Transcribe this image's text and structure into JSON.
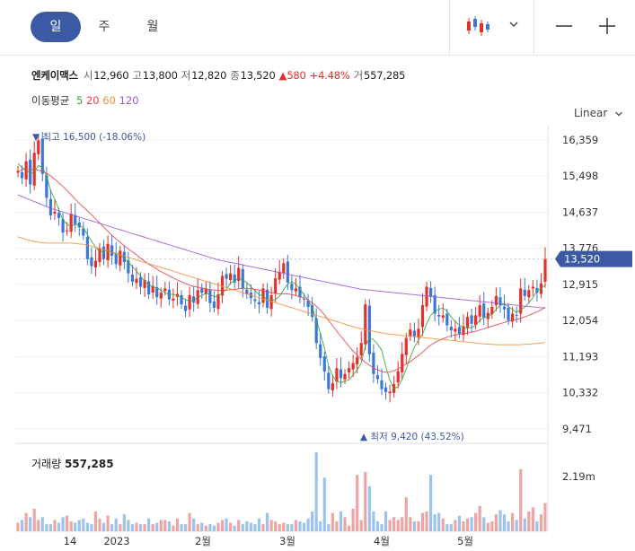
{
  "toolbar": {
    "period_tabs": [
      {
        "label": "일",
        "active": true
      },
      {
        "label": "주",
        "active": false
      },
      {
        "label": "월",
        "active": false
      }
    ],
    "chart_type_icon": "candlestick-icon",
    "zoom_out_icon": "minus-icon",
    "zoom_in_icon": "plus-icon"
  },
  "quote": {
    "name": "엔케이맥스",
    "open_label": "시",
    "open": "12,960",
    "high_label": "고",
    "high": "13,800",
    "low_label": "저",
    "low": "12,820",
    "close_label": "종",
    "close": "13,520",
    "change_arrow": "▲",
    "change": "580",
    "change_pct": "+4.48%",
    "volume_label": "거",
    "volume": "557,285"
  },
  "moving_average": {
    "label": "이동평균",
    "periods": [
      {
        "value": "5",
        "color": "#37a537"
      },
      {
        "value": "20",
        "color": "#e8414a"
      },
      {
        "value": "60",
        "color": "#f0903c"
      },
      {
        "value": "120",
        "color": "#9b57d6"
      }
    ]
  },
  "scale_toggle": {
    "label": "Linear"
  },
  "colors": {
    "up": "#e5302b",
    "down": "#3a78d8",
    "accent": "#3b5aa3",
    "vol_up": "#f0a3a3",
    "vol_down": "#9cc3ec"
  },
  "chart_data": {
    "type": "candlestick",
    "y_ticks": [
      "16,359",
      "15,498",
      "14,637",
      "13,776",
      "12,915",
      "12,054",
      "11,193",
      "10,332",
      "9,471"
    ],
    "ylim": [
      9300,
      16700
    ],
    "current_price_tag": "13,520",
    "max_annotation": "최고 16,500 (-18.06%)",
    "min_annotation": "최저 9,420 (43.52%)",
    "x_ticks": [
      "14",
      "2023",
      "2월",
      "3월",
      "4월",
      "5월"
    ],
    "x_tick_positions": [
      78,
      130,
      226,
      320,
      425,
      518
    ],
    "volume_axis_tick": "2.19m",
    "volume_label": "거래량",
    "volume_value": "557,285",
    "closes": [
      15620,
      15450,
      15850,
      15300,
      16050,
      16350,
      15550,
      14980,
      14560,
      14650,
      14500,
      14150,
      14200,
      14600,
      14350,
      14280,
      14080,
      13520,
      13350,
      13480,
      13780,
      13520,
      13880,
      13600,
      13400,
      13720,
      13450,
      13180,
      12980,
      13050,
      12860,
      13020,
      12680,
      12880,
      12610,
      12720,
      12820,
      12560,
      12580,
      12690,
      12440,
      12280,
      12660,
      12480,
      12780,
      12720,
      12820,
      12470,
      12360,
      12680,
      13120,
      13050,
      13180,
      12960,
      13310,
      12820,
      12680,
      12590,
      12520,
      12440,
      12820,
      12360,
      12660,
      13060,
      13220,
      13420,
      12960,
      12780,
      12820,
      12610,
      12560,
      12380,
      12140,
      11520,
      11160,
      10840,
      10420,
      10560,
      10920,
      10680,
      10780,
      10920,
      11040,
      11180,
      11520,
      12440,
      11250,
      10780,
      10660,
      10420,
      10350,
      10360,
      10540,
      10850,
      11260,
      11640,
      11840,
      11680,
      11860,
      12420,
      12860,
      12620,
      12220,
      12150,
      12180,
      11940,
      11820,
      11860,
      11740,
      11920,
      12140,
      11980,
      12180,
      12420,
      12120,
      12240,
      12380,
      12640,
      12420,
      12320,
      12060,
      12220,
      12180,
      12820,
      12640,
      12780,
      12860,
      12720,
      12940,
      13520
    ],
    "volumes": [
      6,
      8,
      13,
      10,
      16,
      8,
      10,
      5,
      5,
      8,
      6,
      10,
      11,
      7,
      6,
      8,
      9,
      6,
      5,
      14,
      9,
      6,
      11,
      5,
      9,
      5,
      12,
      8,
      5,
      6,
      5,
      5,
      9,
      5,
      6,
      8,
      8,
      7,
      4,
      9,
      5,
      5,
      13,
      9,
      5,
      6,
      4,
      5,
      4,
      6,
      8,
      9,
      6,
      4,
      8,
      5,
      7,
      6,
      5,
      9,
      5,
      13,
      8,
      7,
      5,
      6,
      5,
      5,
      8,
      7,
      6,
      9,
      14,
      56,
      7,
      38,
      5,
      13,
      7,
      14,
      10,
      4,
      16,
      40,
      8,
      42,
      32,
      14,
      7,
      5,
      14,
      8,
      10,
      8,
      10,
      24,
      10,
      7,
      7,
      13,
      14,
      40,
      12,
      13,
      9,
      5,
      5,
      8,
      11,
      7,
      9,
      10,
      13,
      18,
      10,
      6,
      7,
      12,
      15,
      12,
      7,
      13,
      8,
      44,
      9,
      14,
      17,
      7,
      12,
      20
    ],
    "ma_lines": [
      {
        "period": "5",
        "values": [
          15800,
          15700,
          15650,
          15550,
          15600,
          15750,
          15700,
          15500,
          15150,
          14950,
          14700,
          14450,
          14350,
          14300,
          14350,
          14320,
          14270,
          14100,
          13950,
          13800,
          13700,
          13700,
          13730,
          13680,
          13660,
          13620,
          13540,
          13450,
          13340,
          13230,
          13110,
          12990,
          12900,
          12860,
          12830,
          12780,
          12710,
          12680,
          12680,
          12640,
          12610,
          12560,
          12510,
          12540,
          12600,
          12660,
          12700,
          12680,
          12620,
          12640,
          12720,
          12800,
          12950,
          13000,
          13070,
          13020,
          12960,
          12860,
          12770,
          12670,
          12640,
          12550,
          12520,
          12560,
          12630,
          12790,
          12920,
          12980,
          12920,
          12800,
          12670,
          12540,
          12360,
          12070,
          11750,
          11390,
          10990,
          10730,
          10610,
          10570,
          10610,
          10640,
          10760,
          10880,
          11040,
          11450,
          11640,
          11600,
          11490,
          11350,
          10960,
          10630,
          10430,
          10480,
          10650,
          10900,
          11180,
          11420,
          11590,
          11730,
          11980,
          12180,
          12270,
          12330,
          12350,
          12280,
          12140,
          12030,
          11950,
          11880,
          11870,
          11890,
          11940,
          12060,
          12130,
          12150,
          12210,
          12320,
          12420,
          12440,
          12390,
          12320,
          12250,
          12320,
          12370,
          12480,
          12600,
          12760,
          12820,
          12900
        ]
      },
      {
        "period": "20",
        "values": [
          15600,
          15650,
          15660,
          15650,
          15660,
          15640,
          15610,
          15570,
          15500,
          15420,
          15340,
          15250,
          15150,
          15050,
          14950,
          14850,
          14760,
          14670,
          14580,
          14480,
          14380,
          14280,
          14180,
          14090,
          14000,
          13920,
          13840,
          13760,
          13690,
          13620,
          13540,
          13470,
          13400,
          13340,
          13280,
          13220,
          13170,
          13120,
          13070,
          13020,
          12980,
          12940,
          12900,
          12870,
          12850,
          12830,
          12810,
          12790,
          12780,
          12770,
          12770,
          12780,
          12790,
          12800,
          12810,
          12820,
          12820,
          12810,
          12800,
          12780,
          12760,
          12740,
          12720,
          12700,
          12690,
          12690,
          12690,
          12670,
          12650,
          12620,
          12590,
          12540,
          12480,
          12400,
          12300,
          12190,
          12060,
          11930,
          11800,
          11680,
          11560,
          11440,
          11330,
          11230,
          11140,
          11060,
          10990,
          10930,
          10880,
          10840,
          10820,
          10830,
          10860,
          10900,
          10960,
          11020,
          11080,
          11150,
          11220,
          11300,
          11390,
          11470,
          11530,
          11580,
          11620,
          11660,
          11690,
          11710,
          11730,
          11740,
          11760,
          11780,
          11800,
          11830,
          11860,
          11890,
          11920,
          11950,
          11980,
          12010,
          12040,
          12060,
          12080,
          12110,
          12140,
          12180,
          12220,
          12260,
          12310,
          12380
        ]
      },
      {
        "period": "60",
        "values": [
          14050,
          14020,
          13990,
          13960,
          13940,
          13920,
          13910,
          13900,
          13900,
          13900,
          13900,
          13900,
          13900,
          13900,
          13890,
          13880,
          13870,
          13850,
          13830,
          13800,
          13770,
          13740,
          13710,
          13680,
          13650,
          13620,
          13590,
          13560,
          13530,
          13500,
          13470,
          13440,
          13410,
          13380,
          13350,
          13320,
          13290,
          13260,
          13230,
          13200,
          13170,
          13140,
          13110,
          13080,
          13050,
          13020,
          12990,
          12960,
          12930,
          12900,
          12870,
          12840,
          12810,
          12780,
          12750,
          12720,
          12690,
          12660,
          12630,
          12600,
          12570,
          12540,
          12510,
          12480,
          12450,
          12420,
          12390,
          12360,
          12330,
          12300,
          12270,
          12240,
          12210,
          12180,
          12150,
          12120,
          12090,
          12060,
          12030,
          12000,
          11970,
          11940,
          11910,
          11880,
          11860,
          11840,
          11820,
          11800,
          11780,
          11760,
          11740,
          11730,
          11720,
          11710,
          11700,
          11690,
          11680,
          11670,
          11660,
          11650,
          11640,
          11630,
          11620,
          11610,
          11600,
          11590,
          11580,
          11570,
          11560,
          11550,
          11540,
          11530,
          11520,
          11510,
          11500,
          11490,
          11490,
          11480,
          11480,
          11480,
          11480,
          11480,
          11480,
          11480,
          11490,
          11490,
          11500,
          11510,
          11520,
          11530
        ]
      },
      {
        "period": "120",
        "values": [
          15050,
          15010,
          14970,
          14930,
          14890,
          14850,
          14810,
          14770,
          14730,
          14700,
          14670,
          14640,
          14610,
          14580,
          14550,
          14520,
          14490,
          14460,
          14430,
          14400,
          14370,
          14340,
          14310,
          14280,
          14250,
          14220,
          14190,
          14160,
          14130,
          14100,
          14070,
          14040,
          14010,
          13980,
          13950,
          13920,
          13890,
          13860,
          13830,
          13800,
          13770,
          13740,
          13710,
          13680,
          13650,
          13620,
          13590,
          13560,
          13530,
          13500,
          13480,
          13460,
          13440,
          13420,
          13400,
          13380,
          13360,
          13340,
          13320,
          13300,
          13280,
          13260,
          13240,
          13220,
          13200,
          13180,
          13160,
          13140,
          13120,
          13100,
          13080,
          13060,
          13040,
          13020,
          13000,
          12980,
          12960,
          12940,
          12920,
          12900,
          12880,
          12860,
          12840,
          12820,
          12800,
          12790,
          12780,
          12770,
          12760,
          12750,
          12740,
          12730,
          12720,
          12710,
          12700,
          12690,
          12680,
          12670,
          12660,
          12650,
          12640,
          12630,
          12620,
          12610,
          12600,
          12590,
          12580,
          12570,
          12560,
          12550,
          12540,
          12530,
          12520,
          12510,
          12500,
          12490,
          12480,
          12470,
          12460,
          12450,
          12440,
          12430,
          12420,
          12410,
          12400,
          12390,
          12380,
          12370,
          12360,
          12350
        ]
      }
    ]
  }
}
